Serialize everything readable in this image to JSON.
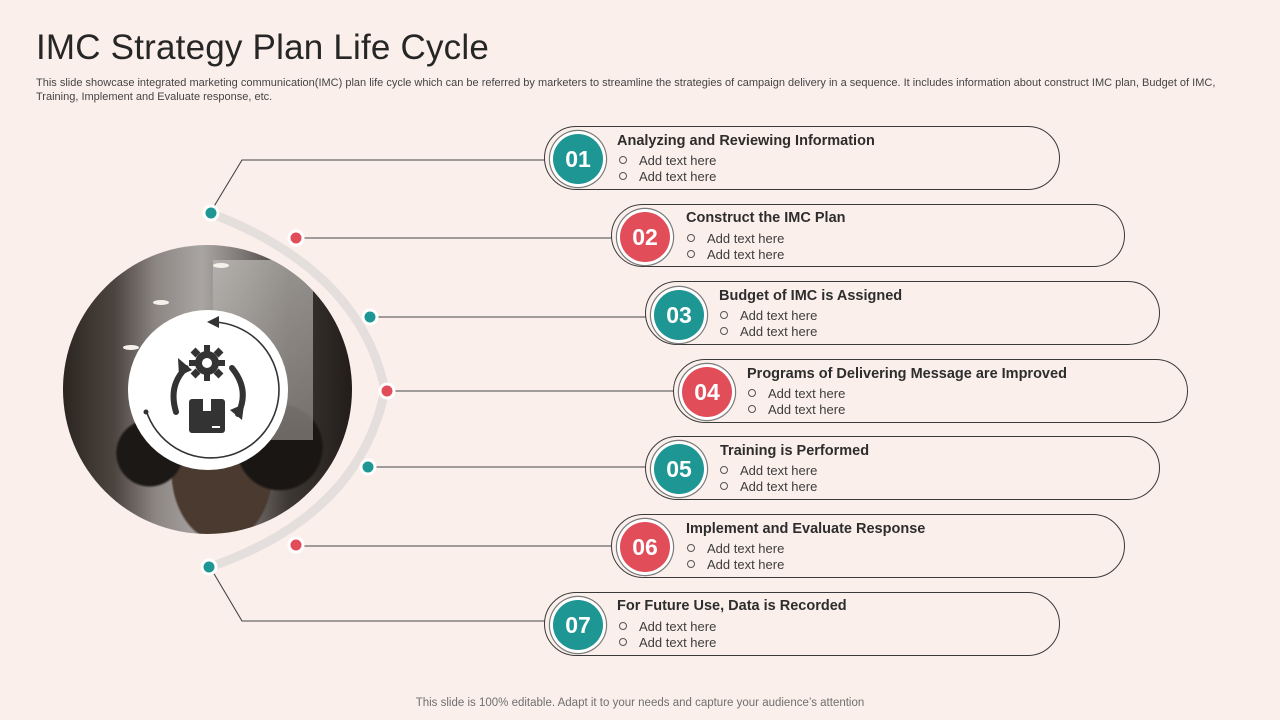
{
  "title": "IMC Strategy Plan Life Cycle",
  "subtitle": "This slide showcase integrated marketing communication(IMC) plan life cycle which can be referred by marketers to streamline the strategies of campaign delivery in a sequence. It includes information about construct IMC plan, Budget of IMC, Training, Implement and Evaluate response, etc.",
  "footer": "This slide is 100% editable. Adapt it to your needs and capture your audience’s attention",
  "colors": {
    "teal": "#1e9693",
    "red": "#e24d5a",
    "background": "#fbefeb"
  },
  "center_icon": "gear-box-cycle-icon",
  "steps": [
    {
      "number": "01",
      "title": "Analyzing  and Reviewing Information",
      "bullets": [
        "Add text here",
        "Add text here"
      ],
      "color": "teal"
    },
    {
      "number": "02",
      "title": "Construct the IMC Plan",
      "bullets": [
        "Add text here",
        "Add text here"
      ],
      "color": "red"
    },
    {
      "number": "03",
      "title": "Budget of IMC is Assigned",
      "bullets": [
        "Add text here",
        "Add text here"
      ],
      "color": "teal"
    },
    {
      "number": "04",
      "title": "Programs of Delivering Message are Improved",
      "bullets": [
        "Add text here",
        "Add text here"
      ],
      "color": "red"
    },
    {
      "number": "05",
      "title": "Training is Performed",
      "bullets": [
        "Add text here",
        "Add text here"
      ],
      "color": "teal"
    },
    {
      "number": "06",
      "title": "Implement and Evaluate Response",
      "bullets": [
        "Add text here",
        "Add text here"
      ],
      "color": "red"
    },
    {
      "number": "07",
      "title": "For Future Use, Data is Recorded",
      "bullets": [
        "Add text here",
        "Add text here"
      ],
      "color": "teal"
    }
  ]
}
